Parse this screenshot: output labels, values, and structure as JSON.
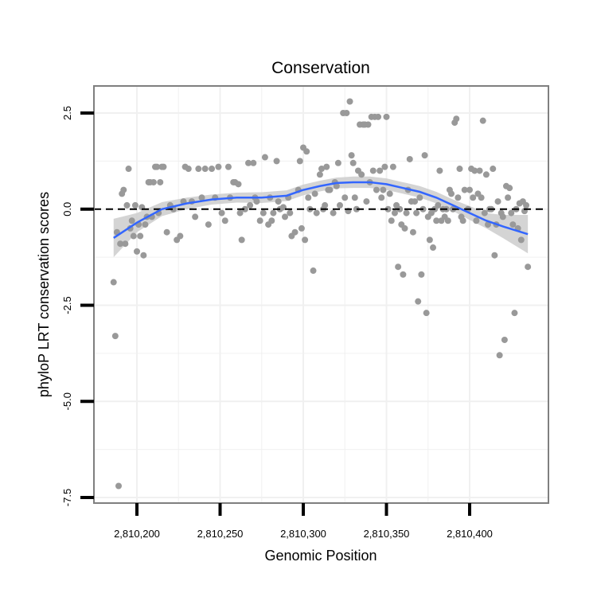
{
  "chart_data": {
    "type": "scatter",
    "title": "Conservation",
    "xlabel": "Genomic Position",
    "ylabel": "phyloP LRT conservation scores",
    "xlim": [
      2810176,
      2810440
    ],
    "ylim": [
      -7.5,
      3.1
    ],
    "x_ticks": [
      {
        "value": 2810200,
        "label": "2,810,200"
      },
      {
        "value": 2810250,
        "label": "2,810,250"
      },
      {
        "value": 2810300,
        "label": "2,810,300"
      },
      {
        "value": 2810350,
        "label": "2,810,350"
      },
      {
        "value": 2810400,
        "label": "2,810,400"
      }
    ],
    "y_ticks": [
      {
        "value": 2.5,
        "label": "2.5"
      },
      {
        "value": 0.0,
        "label": "0.0"
      },
      {
        "value": -2.5,
        "label": "-2.5"
      },
      {
        "value": -5.0,
        "label": "-5.0"
      },
      {
        "value": -7.5,
        "label": "-7.5"
      }
    ],
    "reference_line": {
      "y": 0.0,
      "style": "dashed"
    },
    "grid": true,
    "colors": {
      "points": "#999999",
      "smooth": "#3366ff",
      "band": "#cccccc",
      "border": "#7f7f7f",
      "grid": "#f0f0f0"
    },
    "points": [
      [
        2810186,
        -1.9
      ],
      [
        2810187,
        -3.3
      ],
      [
        2810188,
        -0.6
      ],
      [
        2810189,
        -7.2
      ],
      [
        2810190,
        -0.9
      ],
      [
        2810191,
        0.4
      ],
      [
        2810192,
        0.5
      ],
      [
        2810193,
        -0.9
      ],
      [
        2810194,
        0.1
      ],
      [
        2810195,
        1.05
      ],
      [
        2810196,
        -0.5
      ],
      [
        2810197,
        -0.3
      ],
      [
        2810198,
        -0.7
      ],
      [
        2810199,
        0.1
      ],
      [
        2810200,
        -1.1
      ],
      [
        2810201,
        -0.4
      ],
      [
        2810202,
        -0.7
      ],
      [
        2810203,
        0.05
      ],
      [
        2810204,
        -1.2
      ],
      [
        2810205,
        -0.4
      ],
      [
        2810206,
        -0.2
      ],
      [
        2810207,
        0.7
      ],
      [
        2810208,
        0.7
      ],
      [
        2810209,
        -0.2
      ],
      [
        2810210,
        0.7
      ],
      [
        2810211,
        1.1
      ],
      [
        2810212,
        1.1
      ],
      [
        2810213,
        -0.1
      ],
      [
        2810214,
        0.7
      ],
      [
        2810215,
        1.1
      ],
      [
        2810216,
        1.1
      ],
      [
        2810218,
        -0.6
      ],
      [
        2810220,
        0.1
      ],
      [
        2810222,
        0.0
      ],
      [
        2810224,
        -0.8
      ],
      [
        2810226,
        -0.7
      ],
      [
        2810228,
        0.2
      ],
      [
        2810229,
        1.1
      ],
      [
        2810231,
        1.05
      ],
      [
        2810233,
        0.2
      ],
      [
        2810235,
        -0.2
      ],
      [
        2810237,
        1.05
      ],
      [
        2810239,
        0.3
      ],
      [
        2810241,
        1.05
      ],
      [
        2810243,
        -0.4
      ],
      [
        2810245,
        1.05
      ],
      [
        2810247,
        0.3
      ],
      [
        2810249,
        1.1
      ],
      [
        2810251,
        -0.1
      ],
      [
        2810253,
        -0.3
      ],
      [
        2810255,
        1.1
      ],
      [
        2810256,
        0.3
      ],
      [
        2810258,
        0.7
      ],
      [
        2810259,
        0.7
      ],
      [
        2810261,
        0.65
      ],
      [
        2810262,
        -0.1
      ],
      [
        2810263,
        -0.8
      ],
      [
        2810265,
        0.0
      ],
      [
        2810267,
        1.2
      ],
      [
        2810268,
        0.1
      ],
      [
        2810270,
        1.2
      ],
      [
        2810271,
        0.3
      ],
      [
        2810272,
        0.2
      ],
      [
        2810274,
        -0.3
      ],
      [
        2810276,
        -0.1
      ],
      [
        2810277,
        1.35
      ],
      [
        2810279,
        -0.4
      ],
      [
        2810280,
        0.3
      ],
      [
        2810281,
        -0.3
      ],
      [
        2810282,
        -0.1
      ],
      [
        2810284,
        1.25
      ],
      [
        2810285,
        0.2
      ],
      [
        2810286,
        0.0
      ],
      [
        2810288,
        0.05
      ],
      [
        2810289,
        -0.2
      ],
      [
        2810291,
        0.3
      ],
      [
        2810292,
        -0.1
      ],
      [
        2810293,
        -0.7
      ],
      [
        2810295,
        -0.6
      ],
      [
        2810297,
        0.5
      ],
      [
        2810298,
        1.25
      ],
      [
        2810299,
        -0.5
      ],
      [
        2810300,
        1.6
      ],
      [
        2810301,
        -0.8
      ],
      [
        2810302,
        1.5
      ],
      [
        2810303,
        0.3
      ],
      [
        2810304,
        0.0
      ],
      [
        2810306,
        -1.6
      ],
      [
        2810307,
        0.4
      ],
      [
        2810308,
        -0.1
      ],
      [
        2810310,
        0.9
      ],
      [
        2810311,
        1.05
      ],
      [
        2810312,
        0.0
      ],
      [
        2810313,
        0.1
      ],
      [
        2810314,
        1.1
      ],
      [
        2810315,
        0.5
      ],
      [
        2810316,
        0.5
      ],
      [
        2810318,
        -0.1
      ],
      [
        2810319,
        0.7
      ],
      [
        2810320,
        0.6
      ],
      [
        2810321,
        1.2
      ],
      [
        2810322,
        0.1
      ],
      [
        2810324,
        2.5
      ],
      [
        2810325,
        0.3
      ],
      [
        2810326,
        2.5
      ],
      [
        2810327,
        -0.05
      ],
      [
        2810328,
        2.8
      ],
      [
        2810329,
        1.4
      ],
      [
        2810330,
        1.2
      ],
      [
        2810331,
        0.3
      ],
      [
        2810332,
        0.0
      ],
      [
        2810333,
        1.0
      ],
      [
        2810334,
        2.2
      ],
      [
        2810335,
        0.9
      ],
      [
        2810336,
        2.2
      ],
      [
        2810337,
        2.2
      ],
      [
        2810338,
        0.2
      ],
      [
        2810339,
        2.2
      ],
      [
        2810340,
        0.7
      ],
      [
        2810341,
        2.4
      ],
      [
        2810342,
        1.0
      ],
      [
        2810343,
        2.4
      ],
      [
        2810344,
        0.5
      ],
      [
        2810345,
        2.4
      ],
      [
        2810346,
        1.0
      ],
      [
        2810347,
        0.3
      ],
      [
        2810348,
        0.5
      ],
      [
        2810349,
        1.1
      ],
      [
        2810350,
        2.4
      ],
      [
        2810351,
        0.0
      ],
      [
        2810352,
        0.4
      ],
      [
        2810353,
        -0.3
      ],
      [
        2810354,
        1.1
      ],
      [
        2810355,
        -0.1
      ],
      [
        2810356,
        0.1
      ],
      [
        2810357,
        -1.5
      ],
      [
        2810358,
        0.0
      ],
      [
        2810359,
        -0.4
      ],
      [
        2810360,
        -1.7
      ],
      [
        2810361,
        -0.5
      ],
      [
        2810362,
        -0.1
      ],
      [
        2810363,
        0.5
      ],
      [
        2810364,
        1.3
      ],
      [
        2810365,
        0.2
      ],
      [
        2810366,
        -0.6
      ],
      [
        2810367,
        0.2
      ],
      [
        2810368,
        -0.1
      ],
      [
        2810369,
        -2.4
      ],
      [
        2810370,
        0.3
      ],
      [
        2810371,
        -1.7
      ],
      [
        2810372,
        0.0
      ],
      [
        2810373,
        1.4
      ],
      [
        2810374,
        -2.7
      ],
      [
        2810375,
        -0.2
      ],
      [
        2810376,
        -0.8
      ],
      [
        2810377,
        -0.1
      ],
      [
        2810378,
        -1.0
      ],
      [
        2810379,
        0.0
      ],
      [
        2810380,
        -0.3
      ],
      [
        2810381,
        0.1
      ],
      [
        2810382,
        1.0
      ],
      [
        2810383,
        -0.3
      ],
      [
        2810384,
        0.0
      ],
      [
        2810385,
        -0.2
      ],
      [
        2810386,
        0.0
      ],
      [
        2810387,
        -0.3
      ],
      [
        2810388,
        0.5
      ],
      [
        2810389,
        0.4
      ],
      [
        2810390,
        0.0
      ],
      [
        2810391,
        2.25
      ],
      [
        2810392,
        2.35
      ],
      [
        2810393,
        0.3
      ],
      [
        2810394,
        1.05
      ],
      [
        2810395,
        -0.2
      ],
      [
        2810396,
        -0.3
      ],
      [
        2810397,
        0.5
      ],
      [
        2810399,
        0.0
      ],
      [
        2810400,
        0.5
      ],
      [
        2810401,
        1.05
      ],
      [
        2810402,
        0.3
      ],
      [
        2810403,
        1.0
      ],
      [
        2810404,
        -0.3
      ],
      [
        2810405,
        0.4
      ],
      [
        2810406,
        1.0
      ],
      [
        2810407,
        0.3
      ],
      [
        2810408,
        2.3
      ],
      [
        2810409,
        -0.1
      ],
      [
        2810410,
        0.9
      ],
      [
        2810411,
        -0.4
      ],
      [
        2810412,
        0.0
      ],
      [
        2810413,
        0.0
      ],
      [
        2810414,
        1.05
      ],
      [
        2810415,
        -1.2
      ],
      [
        2810416,
        -0.4
      ],
      [
        2810417,
        0.2
      ],
      [
        2810418,
        -3.8
      ],
      [
        2810419,
        -0.1
      ],
      [
        2810420,
        -0.2
      ],
      [
        2810421,
        -3.4
      ],
      [
        2810422,
        0.6
      ],
      [
        2810423,
        0.3
      ],
      [
        2810424,
        0.55
      ],
      [
        2810425,
        -0.1
      ],
      [
        2810426,
        -0.4
      ],
      [
        2810427,
        -2.7
      ],
      [
        2810428,
        0.0
      ],
      [
        2810429,
        -0.5
      ],
      [
        2810430,
        0.15
      ],
      [
        2810431,
        -0.8
      ],
      [
        2810432,
        0.2
      ],
      [
        2810433,
        -0.05
      ],
      [
        2810434,
        0.1
      ],
      [
        2810435,
        -1.5
      ]
    ],
    "smooth": {
      "x": [
        2810186,
        2810200,
        2810215,
        2810230,
        2810245,
        2810260,
        2810275,
        2810290,
        2810300,
        2810310,
        2810320,
        2810330,
        2810340,
        2810350,
        2810360,
        2810370,
        2810380,
        2810390,
        2810400,
        2810410,
        2810420,
        2810435
      ],
      "y": [
        -0.75,
        -0.35,
        0.0,
        0.15,
        0.25,
        0.3,
        0.3,
        0.35,
        0.5,
        0.6,
        0.68,
        0.7,
        0.7,
        0.65,
        0.55,
        0.45,
        0.3,
        0.1,
        -0.1,
        -0.3,
        -0.45,
        -0.65
      ],
      "band": [
        0.5,
        0.25,
        0.18,
        0.15,
        0.13,
        0.13,
        0.14,
        0.14,
        0.14,
        0.14,
        0.14,
        0.15,
        0.15,
        0.15,
        0.15,
        0.15,
        0.15,
        0.15,
        0.18,
        0.2,
        0.3,
        0.5
      ]
    }
  }
}
